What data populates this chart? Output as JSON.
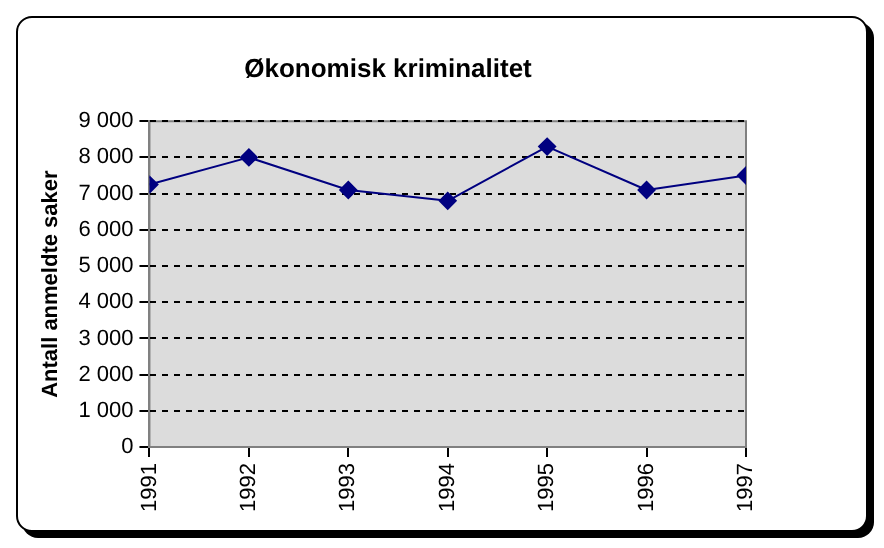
{
  "chart_data": {
    "type": "line",
    "title": "Økonomisk kriminalitet",
    "ylabel": "Antall anmeldte saker",
    "x": [
      1991,
      1992,
      1993,
      1994,
      1995,
      1996,
      1997
    ],
    "series": [
      {
        "color": "#000080",
        "values": [
          7250,
          8000,
          7100,
          6800,
          8300,
          7100,
          7500
        ]
      }
    ],
    "xlim": [
      1991,
      1997
    ],
    "xticks": [
      1991,
      1992,
      1993,
      1994,
      1995,
      1996,
      1997
    ],
    "ylim": [
      0,
      9000
    ],
    "yticks": [
      0,
      {
        "value": 1000,
        "label": "1 000"
      },
      {
        "value": 2000,
        "label": "2 000"
      },
      {
        "value": 3000,
        "label": "3 000"
      },
      {
        "value": 4000,
        "label": "4 000"
      },
      {
        "value": 5000,
        "label": "5 000"
      },
      {
        "value": 6000,
        "label": "6 000"
      },
      {
        "value": 7000,
        "label": "7 000"
      },
      {
        "value": 8000,
        "label": "8 000"
      },
      {
        "value": 9000,
        "label": "9 000"
      }
    ],
    "grid": "y",
    "legend": false,
    "marker": "diamond",
    "line_style": "solid"
  }
}
